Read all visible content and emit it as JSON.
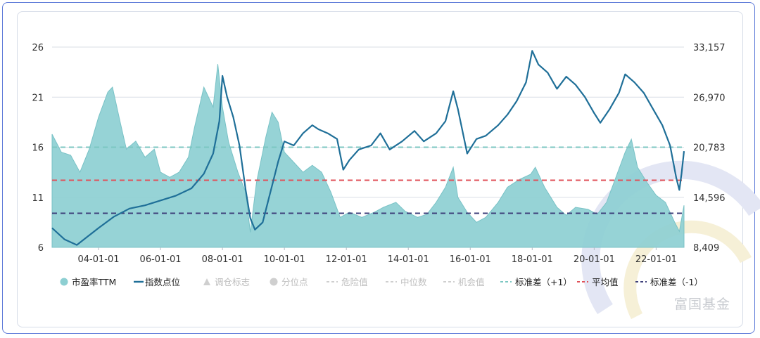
{
  "chart_data": {
    "type": "area+line",
    "xlabel": "",
    "x_tick_labels": [
      "04-01-01",
      "06-01-01",
      "08-01-01",
      "10-01-01",
      "12-01-01",
      "14-01-01",
      "16-01-01",
      "18-01-01",
      "20-01-01",
      "22-01-01"
    ],
    "x_range": [
      2002.5,
      2022.9
    ],
    "y_left": {
      "label": "市盈率TTM",
      "ticks": [
        6,
        11,
        16,
        21,
        26
      ],
      "range": [
        6,
        26
      ]
    },
    "y_right": {
      "label": "指数点位",
      "ticks": [
        "8,409",
        "14,596",
        "20,783",
        "26,970",
        "33,157"
      ],
      "range": [
        8409,
        33157
      ]
    },
    "reference_lines": [
      {
        "name": "标准差（+1）",
        "value": 16.0,
        "color": "#7cc7c2"
      },
      {
        "name": "平均值",
        "value": 12.7,
        "color": "#e0525a"
      },
      {
        "name": "标准差（-1）",
        "value": 9.4,
        "color": "#3d3f7a"
      }
    ],
    "series": [
      {
        "name": "市盈率TTM",
        "kind": "area",
        "axis": "left",
        "color": "#8dcfd2",
        "points": [
          [
            2002.5,
            17.3
          ],
          [
            2002.8,
            15.5
          ],
          [
            2003.1,
            15.2
          ],
          [
            2003.4,
            13.5
          ],
          [
            2003.7,
            15.8
          ],
          [
            2004.0,
            19.0
          ],
          [
            2004.3,
            21.5
          ],
          [
            2004.45,
            22.0
          ],
          [
            2004.7,
            18.5
          ],
          [
            2004.9,
            15.8
          ],
          [
            2005.2,
            16.6
          ],
          [
            2005.5,
            15.0
          ],
          [
            2005.8,
            15.8
          ],
          [
            2006.0,
            13.5
          ],
          [
            2006.3,
            13.0
          ],
          [
            2006.6,
            13.5
          ],
          [
            2006.9,
            15.0
          ],
          [
            2007.1,
            18.0
          ],
          [
            2007.4,
            22.0
          ],
          [
            2007.7,
            20.0
          ],
          [
            2007.85,
            24.3
          ],
          [
            2008.0,
            20.0
          ],
          [
            2008.2,
            16.5
          ],
          [
            2008.5,
            13.5
          ],
          [
            2008.75,
            11.5
          ],
          [
            2008.9,
            7.5
          ],
          [
            2009.1,
            12.5
          ],
          [
            2009.4,
            17.0
          ],
          [
            2009.6,
            19.5
          ],
          [
            2009.8,
            18.5
          ],
          [
            2010.0,
            15.5
          ],
          [
            2010.3,
            14.5
          ],
          [
            2010.6,
            13.5
          ],
          [
            2010.9,
            14.2
          ],
          [
            2011.2,
            13.5
          ],
          [
            2011.5,
            11.5
          ],
          [
            2011.8,
            9.0
          ],
          [
            2012.1,
            9.5
          ],
          [
            2012.5,
            9.0
          ],
          [
            2012.9,
            9.5
          ],
          [
            2013.2,
            10.0
          ],
          [
            2013.6,
            10.5
          ],
          [
            2013.9,
            9.6
          ],
          [
            2014.3,
            9.0
          ],
          [
            2014.6,
            9.3
          ],
          [
            2014.9,
            10.5
          ],
          [
            2015.2,
            12.0
          ],
          [
            2015.45,
            14.0
          ],
          [
            2015.6,
            11.0
          ],
          [
            2015.9,
            9.5
          ],
          [
            2016.2,
            8.5
          ],
          [
            2016.5,
            9.0
          ],
          [
            2016.9,
            10.5
          ],
          [
            2017.2,
            12.0
          ],
          [
            2017.6,
            12.8
          ],
          [
            2017.95,
            13.3
          ],
          [
            2018.1,
            14.0
          ],
          [
            2018.4,
            12.0
          ],
          [
            2018.8,
            10.0
          ],
          [
            2019.1,
            9.2
          ],
          [
            2019.4,
            10.0
          ],
          [
            2019.8,
            9.8
          ],
          [
            2020.1,
            9.3
          ],
          [
            2020.4,
            10.5
          ],
          [
            2020.7,
            13.0
          ],
          [
            2021.0,
            15.5
          ],
          [
            2021.2,
            16.8
          ],
          [
            2021.4,
            14.0
          ],
          [
            2021.7,
            12.5
          ],
          [
            2022.0,
            11.2
          ],
          [
            2022.3,
            10.5
          ],
          [
            2022.6,
            8.5
          ],
          [
            2022.75,
            7.6
          ],
          [
            2022.9,
            10.2
          ]
        ]
      },
      {
        "name": "指数点位",
        "kind": "line",
        "axis": "right",
        "color": "#1f6f98",
        "points": [
          [
            2002.5,
            10800
          ],
          [
            2002.9,
            9400
          ],
          [
            2003.3,
            8700
          ],
          [
            2003.6,
            9600
          ],
          [
            2004.0,
            10800
          ],
          [
            2004.5,
            12200
          ],
          [
            2005.0,
            13200
          ],
          [
            2005.5,
            13600
          ],
          [
            2006.0,
            14200
          ],
          [
            2006.5,
            14800
          ],
          [
            2007.0,
            15700
          ],
          [
            2007.4,
            17500
          ],
          [
            2007.7,
            20000
          ],
          [
            2007.9,
            24000
          ],
          [
            2008.0,
            29600
          ],
          [
            2008.15,
            27000
          ],
          [
            2008.35,
            24500
          ],
          [
            2008.55,
            21000
          ],
          [
            2008.75,
            15500
          ],
          [
            2008.9,
            12000
          ],
          [
            2009.05,
            10600
          ],
          [
            2009.3,
            11500
          ],
          [
            2009.6,
            16000
          ],
          [
            2009.8,
            19000
          ],
          [
            2010.0,
            21500
          ],
          [
            2010.3,
            21000
          ],
          [
            2010.6,
            22500
          ],
          [
            2010.9,
            23500
          ],
          [
            2011.1,
            23000
          ],
          [
            2011.4,
            22500
          ],
          [
            2011.7,
            21800
          ],
          [
            2011.9,
            18000
          ],
          [
            2012.1,
            19200
          ],
          [
            2012.4,
            20500
          ],
          [
            2012.8,
            21000
          ],
          [
            2013.1,
            22500
          ],
          [
            2013.4,
            20500
          ],
          [
            2013.8,
            21500
          ],
          [
            2014.2,
            22800
          ],
          [
            2014.5,
            21500
          ],
          [
            2014.9,
            22500
          ],
          [
            2015.2,
            24000
          ],
          [
            2015.45,
            27700
          ],
          [
            2015.6,
            25500
          ],
          [
            2015.9,
            20000
          ],
          [
            2016.2,
            21800
          ],
          [
            2016.5,
            22200
          ],
          [
            2016.9,
            23500
          ],
          [
            2017.2,
            24800
          ],
          [
            2017.5,
            26500
          ],
          [
            2017.8,
            28800
          ],
          [
            2018.0,
            32700
          ],
          [
            2018.2,
            31000
          ],
          [
            2018.5,
            30000
          ],
          [
            2018.8,
            28000
          ],
          [
            2019.1,
            29500
          ],
          [
            2019.4,
            28500
          ],
          [
            2019.7,
            27000
          ],
          [
            2020.0,
            25000
          ],
          [
            2020.2,
            23800
          ],
          [
            2020.5,
            25500
          ],
          [
            2020.8,
            27500
          ],
          [
            2021.0,
            29800
          ],
          [
            2021.3,
            28800
          ],
          [
            2021.6,
            27500
          ],
          [
            2021.9,
            25500
          ],
          [
            2022.2,
            23500
          ],
          [
            2022.45,
            21000
          ],
          [
            2022.65,
            17000
          ],
          [
            2022.75,
            15500
          ],
          [
            2022.82,
            17500
          ],
          [
            2022.9,
            20300
          ]
        ]
      }
    ]
  },
  "legend": {
    "items": [
      {
        "label": "市盈率TTM",
        "style": "dot",
        "color": "#8dcfd2",
        "active": true
      },
      {
        "label": "指数点位",
        "style": "line",
        "color": "#1f6f98",
        "active": true
      },
      {
        "label": "调仓标志",
        "style": "triangle",
        "color": "#cfcfcf",
        "active": false
      },
      {
        "label": "分位点",
        "style": "dot",
        "color": "#cfcfcf",
        "active": false
      },
      {
        "label": "危险值",
        "style": "dash",
        "color": "#cfcfcf",
        "active": false
      },
      {
        "label": "中位数",
        "style": "dash",
        "color": "#cfcfcf",
        "active": false
      },
      {
        "label": "机会值",
        "style": "dash",
        "color": "#cfcfcf",
        "active": false
      },
      {
        "label": "标准差（+1）",
        "style": "dash",
        "color": "#7cc7c2",
        "active": true
      },
      {
        "label": "平均值",
        "style": "dash",
        "color": "#e0525a",
        "active": true
      },
      {
        "label": "标准差（-1）",
        "style": "dash",
        "color": "#3d3f7a",
        "active": true
      }
    ]
  },
  "watermark": {
    "text": "富国基金"
  },
  "colors": {
    "frame": "#5b78d8",
    "grid": "#d9dde6",
    "axis_text": "#333333"
  }
}
